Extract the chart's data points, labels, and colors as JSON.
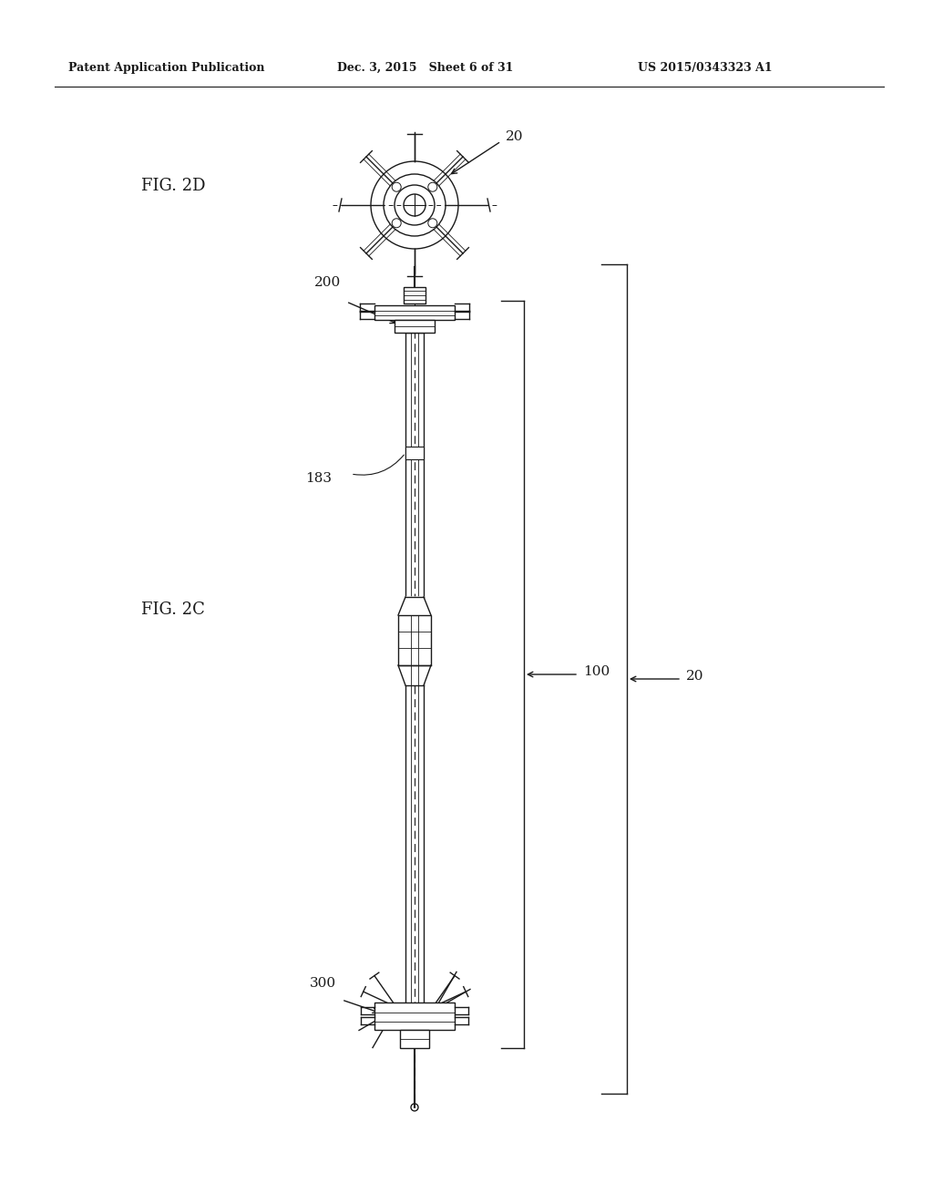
{
  "bg_color": "#ffffff",
  "line_color": "#1a1a1a",
  "header_left": "Patent Application Publication",
  "header_mid": "Dec. 3, 2015   Sheet 6 of 31",
  "header_right": "US 2015/0343323 A1",
  "fig2d_label": "FIG. 2D",
  "fig2c_label": "FIG. 2C",
  "label_20_top": "20",
  "label_200": "200",
  "label_183": "183",
  "label_100": "100",
  "label_20_mid": "20",
  "label_300": "300"
}
